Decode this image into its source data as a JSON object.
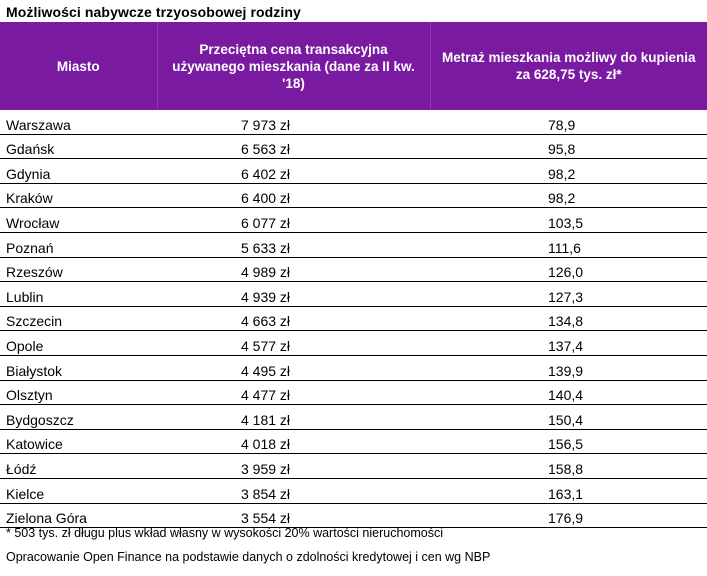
{
  "title": "Możliwości nabywcze trzyosobowej rodziny",
  "headers": {
    "city": "Miasto",
    "price": "Przeciętna cena transakcyjna używanego mieszkania (dane za II kw. '18)",
    "area": "Metraż mieszkania możliwy do kupienia za 628,75 tys. zł*"
  },
  "rows": [
    {
      "city": "Warszawa",
      "price": "7 973 zł",
      "area": "78,9"
    },
    {
      "city": "Gdańsk",
      "price": "6 563 zł",
      "area": "95,8"
    },
    {
      "city": "Gdynia",
      "price": "6 402 zł",
      "area": "98,2"
    },
    {
      "city": "Kraków",
      "price": "6 400 zł",
      "area": "98,2"
    },
    {
      "city": "Wrocław",
      "price": "6 077 zł",
      "area": "103,5"
    },
    {
      "city": "Poznań",
      "price": "5 633 zł",
      "area": "111,6"
    },
    {
      "city": "Rzeszów",
      "price": "4 989 zł",
      "area": "126,0"
    },
    {
      "city": "Lublin",
      "price": "4 939 zł",
      "area": "127,3"
    },
    {
      "city": "Szczecin",
      "price": "4 663 zł",
      "area": "134,8"
    },
    {
      "city": "Opole",
      "price": "4 577 zł",
      "area": "137,4"
    },
    {
      "city": "Białystok",
      "price": "4 495 zł",
      "area": "139,9"
    },
    {
      "city": "Olsztyn",
      "price": "4 477 zł",
      "area": "140,4"
    },
    {
      "city": "Bydgoszcz",
      "price": "4 181 zł",
      "area": "150,4"
    },
    {
      "city": "Katowice",
      "price": "4 018 zł",
      "area": "156,5"
    },
    {
      "city": "Łódź",
      "price": "3 959 zł",
      "area": "158,8"
    },
    {
      "city": "Kielce",
      "price": "3 854 zł",
      "area": "163,1"
    },
    {
      "city": "Zielona Góra",
      "price": "3 554 zł",
      "area": "176,9"
    }
  ],
  "footnotes": {
    "note": "* 503 tys. zł długu plus wkład własny w wysokości 20% wartości nieruchomości",
    "source": "Opracowanie Open Finance na podstawie danych o zdolności kredytowej i cen wg NBP"
  },
  "colors": {
    "header_bg": "#7a1aa0",
    "header_text": "#ffffff"
  }
}
